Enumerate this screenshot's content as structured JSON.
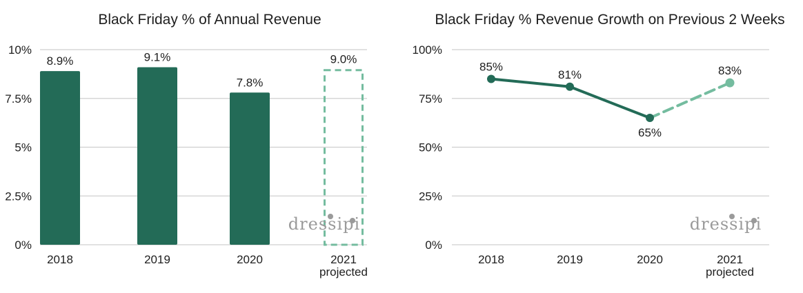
{
  "watermark": "dressipi",
  "colors": {
    "actual": "#236b57",
    "projected": "#74bc9f",
    "grid": "#cfcfcf"
  },
  "chart_data": [
    {
      "type": "bar",
      "title": "Black Friday % of Annual Revenue",
      "categories": [
        "2018",
        "2019",
        "2020",
        "2021"
      ],
      "category_sublabels": [
        "",
        "",
        "",
        "projected"
      ],
      "values": [
        8.9,
        9.1,
        7.8,
        9.0
      ],
      "value_labels": [
        "8.9%",
        "9.1%",
        "7.8%",
        "9.0%"
      ],
      "projected": [
        false,
        false,
        false,
        true
      ],
      "yticks": [
        0,
        2.5,
        5,
        7.5,
        10
      ],
      "ytick_labels": [
        "0%",
        "2.5%",
        "5%",
        "7.5%",
        "10%"
      ],
      "ylim": [
        0,
        10
      ],
      "grid": true
    },
    {
      "type": "line",
      "title": "Black Friday % Revenue Growth on Previous 2 Weeks",
      "categories": [
        "2018",
        "2019",
        "2020",
        "2021"
      ],
      "category_sublabels": [
        "",
        "",
        "",
        "projected"
      ],
      "values": [
        85,
        81,
        65,
        83
      ],
      "value_labels": [
        "85%",
        "81%",
        "65%",
        "83%"
      ],
      "projected": [
        false,
        false,
        false,
        true
      ],
      "yticks": [
        0,
        25,
        50,
        75,
        100
      ],
      "ytick_labels": [
        "0%",
        "25%",
        "50%",
        "75%",
        "100%"
      ],
      "ylim": [
        0,
        100
      ],
      "grid": true
    }
  ]
}
